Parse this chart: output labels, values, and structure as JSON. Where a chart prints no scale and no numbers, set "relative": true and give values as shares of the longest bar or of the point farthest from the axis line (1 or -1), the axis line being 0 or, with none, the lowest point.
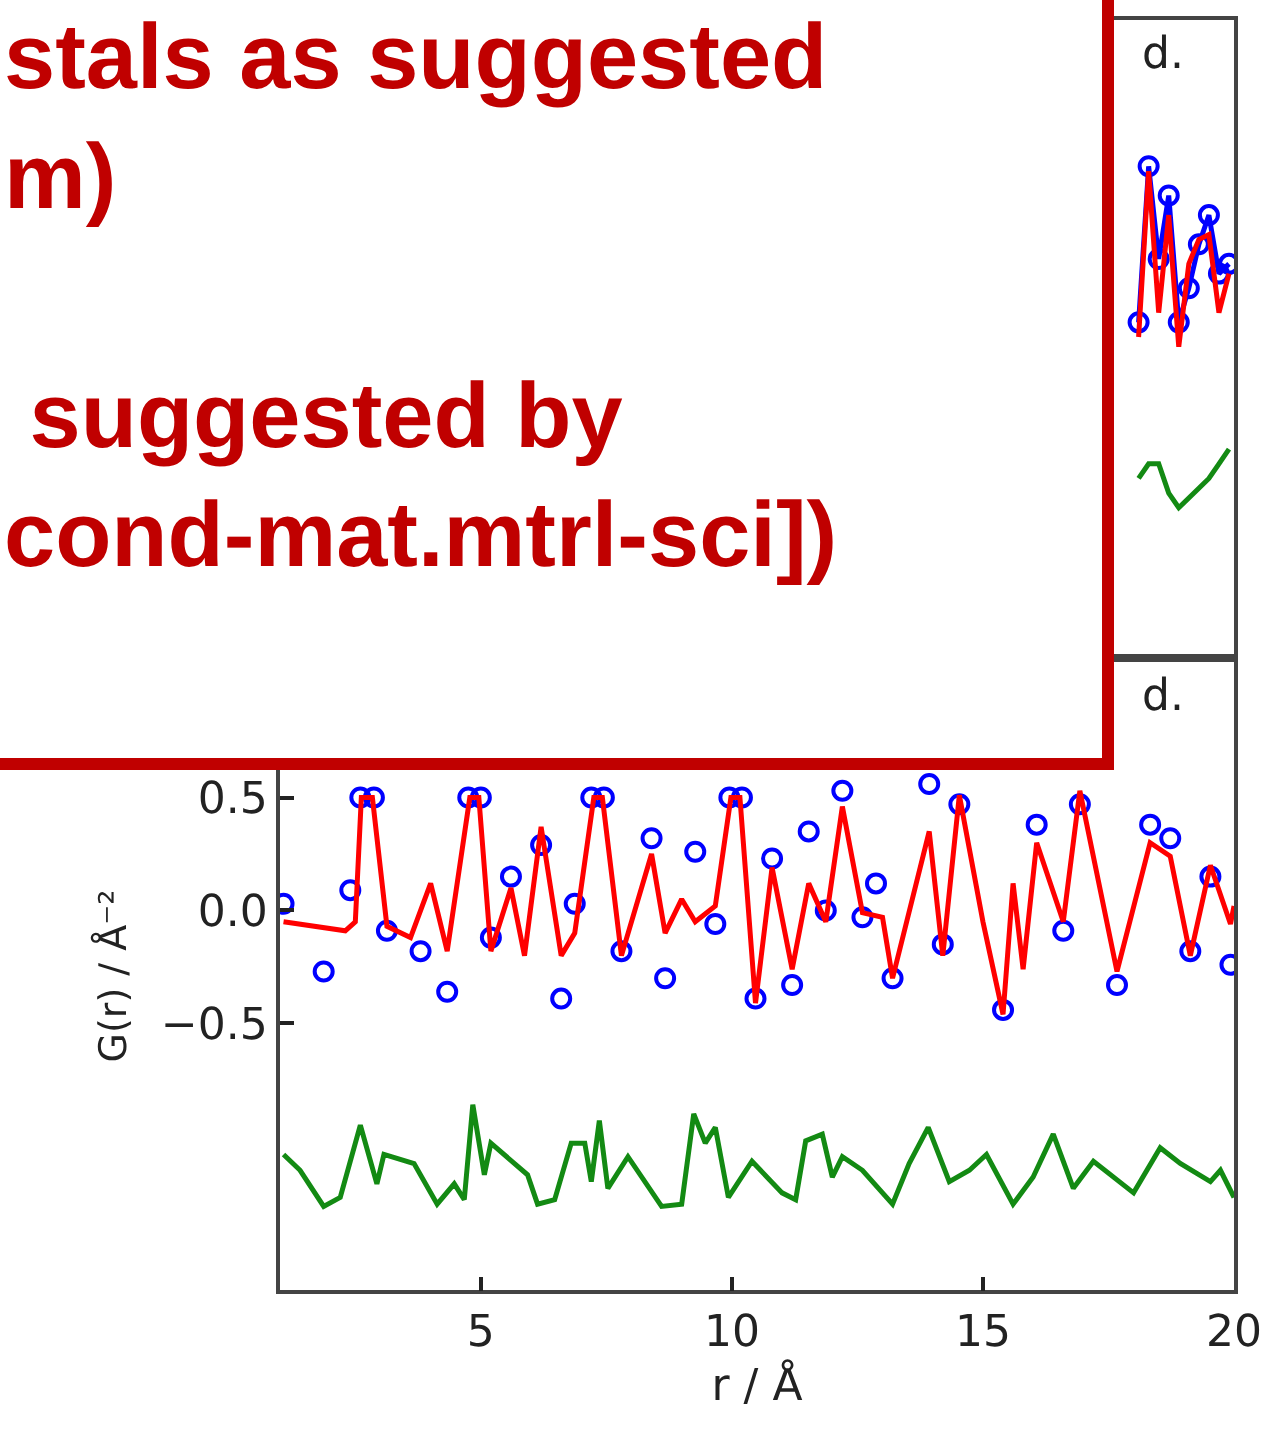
{
  "chart_data": [
    {
      "type": "other",
      "annotations": [
        "stals as suggested",
        "m)",
        " suggested by",
        "cond-mat.mtrl-sci])"
      ]
    },
    {
      "type": "line",
      "relative": true,
      "categories": [
        null,
        null,
        null,
        null,
        null,
        null,
        null,
        null,
        null,
        null
      ],
      "annotations": [
        "d."
      ],
      "series": [
        {
          "type": "line",
          "marker": "circle",
          "color": "#0000ff",
          "values": [
            0.68,
            1.0,
            0.81,
            0.94,
            0.68,
            0.75,
            0.84,
            0.9,
            0.78,
            0.8
          ]
        },
        {
          "type": "line",
          "color": "#ff0000",
          "values": [
            0.65,
            0.99,
            0.7,
            0.9,
            0.63,
            0.8,
            0.85,
            0.86,
            0.7,
            0.78
          ]
        },
        {
          "type": "line",
          "color": "#138a13",
          "values": [
            0.36,
            0.39,
            0.39,
            0.33,
            0.3,
            0.32,
            0.34,
            0.36,
            0.39,
            0.42
          ]
        }
      ]
    },
    {
      "type": "line",
      "xlabel": "r / Å",
      "ylabel": "G(r) / Å⁻²",
      "xlim": [
        1,
        20
      ],
      "xticks": [
        5,
        10,
        15,
        20
      ],
      "ylim": [
        -1.68,
        1.1
      ],
      "yticks": [
        0.5,
        {
          "value": 0,
          "label": "0.0"
        },
        {
          "value": -0.5,
          "label": "−0.5"
        }
      ],
      "annotations": [
        "d."
      ],
      "series": [
        {
          "type": "scatter",
          "marker": "circle",
          "color": "#0000ff",
          "x": [
            1.07,
            1.87,
            2.4,
            2.6,
            2.87,
            3.13,
            3.8,
            4.33,
            4.75,
            5.0,
            5.2,
            5.6,
            6.2,
            6.6,
            6.87,
            7.2,
            7.45,
            7.8,
            8.4,
            8.67,
            9.27,
            9.67,
            9.95,
            10.2,
            10.47,
            10.8,
            11.2,
            11.53,
            11.87,
            12.2,
            12.6,
            12.87,
            13.2,
            13.93,
            14.2,
            14.53,
            15.4,
            16.07,
            16.6,
            16.93,
            17.67,
            18.33,
            18.73,
            19.13,
            19.53,
            19.93
          ],
          "values": [
            0.03,
            -0.27,
            0.09,
            0.5,
            0.5,
            -0.09,
            -0.18,
            -0.36,
            0.5,
            0.5,
            -0.12,
            0.15,
            0.29,
            -0.39,
            0.03,
            0.5,
            0.5,
            -0.18,
            0.32,
            -0.3,
            0.26,
            -0.06,
            0.5,
            0.5,
            -0.39,
            0.23,
            -0.33,
            0.35,
            0.0,
            0.53,
            -0.03,
            0.12,
            -0.3,
            0.56,
            -0.15,
            0.47,
            -0.44,
            0.38,
            -0.09,
            0.47,
            -0.33,
            0.38,
            0.32,
            -0.18,
            0.15,
            -0.24
          ]
        },
        {
          "type": "line",
          "color": "#ff0000",
          "x": [
            1.07,
            2.3,
            2.5,
            2.62,
            2.84,
            3.13,
            3.6,
            4.0,
            4.33,
            4.78,
            4.96,
            5.2,
            5.6,
            5.87,
            6.2,
            6.6,
            6.87,
            7.25,
            7.42,
            7.8,
            8.4,
            8.67,
            9.0,
            9.27,
            9.67,
            9.98,
            10.16,
            10.47,
            10.8,
            11.2,
            11.53,
            11.87,
            12.2,
            12.6,
            13.0,
            13.2,
            13.93,
            14.2,
            14.53,
            15.0,
            15.4,
            15.6,
            15.8,
            16.07,
            16.6,
            16.93,
            17.67,
            18.33,
            18.73,
            19.13,
            19.53,
            19.93,
            20.0
          ],
          "values": [
            -0.05,
            -0.09,
            -0.05,
            0.5,
            0.5,
            -0.07,
            -0.12,
            0.12,
            -0.18,
            0.5,
            0.5,
            -0.18,
            0.1,
            -0.2,
            0.37,
            -0.2,
            -0.1,
            0.5,
            0.5,
            -0.2,
            0.25,
            -0.1,
            0.05,
            -0.05,
            0.02,
            0.5,
            0.5,
            -0.41,
            0.19,
            -0.26,
            0.12,
            -0.05,
            0.46,
            -0.01,
            -0.03,
            -0.3,
            0.35,
            -0.2,
            0.51,
            -0.05,
            -0.46,
            0.12,
            -0.26,
            0.3,
            -0.05,
            0.53,
            -0.27,
            0.3,
            0.24,
            -0.2,
            0.2,
            -0.06,
            0.02
          ]
        },
        {
          "type": "line",
          "color": "#138a13",
          "x": [
            1.07,
            1.4,
            1.87,
            2.2,
            2.6,
            2.93,
            3.07,
            3.67,
            4.13,
            4.47,
            4.67,
            4.84,
            5.07,
            5.2,
            5.93,
            6.13,
            6.47,
            6.8,
            7.07,
            7.2,
            7.36,
            7.53,
            7.93,
            8.6,
            9.0,
            9.24,
            9.47,
            9.67,
            9.93,
            10.4,
            11.0,
            11.27,
            11.47,
            11.8,
            12.0,
            12.2,
            12.6,
            13.2,
            13.53,
            13.91,
            14.33,
            14.73,
            15.07,
            15.6,
            16.0,
            16.4,
            16.8,
            17.2,
            18.0,
            18.53,
            18.93,
            19.53,
            19.73,
            20.0
          ],
          "values": [
            -1.08,
            -1.15,
            -1.31,
            -1.27,
            -0.95,
            -1.21,
            -1.08,
            -1.12,
            -1.3,
            -1.21,
            -1.28,
            -0.86,
            -1.17,
            -1.03,
            -1.17,
            -1.3,
            -1.28,
            -1.03,
            -1.03,
            -1.2,
            -0.93,
            -1.23,
            -1.09,
            -1.31,
            -1.3,
            -0.9,
            -1.03,
            -0.96,
            -1.27,
            -1.11,
            -1.25,
            -1.28,
            -1.02,
            -0.99,
            -1.18,
            -1.09,
            -1.15,
            -1.3,
            -1.12,
            -0.96,
            -1.2,
            -1.15,
            -1.08,
            -1.3,
            -1.18,
            -0.99,
            -1.23,
            -1.11,
            -1.25,
            -1.05,
            -1.12,
            -1.2,
            -1.15,
            -1.27
          ]
        }
      ]
    }
  ]
}
